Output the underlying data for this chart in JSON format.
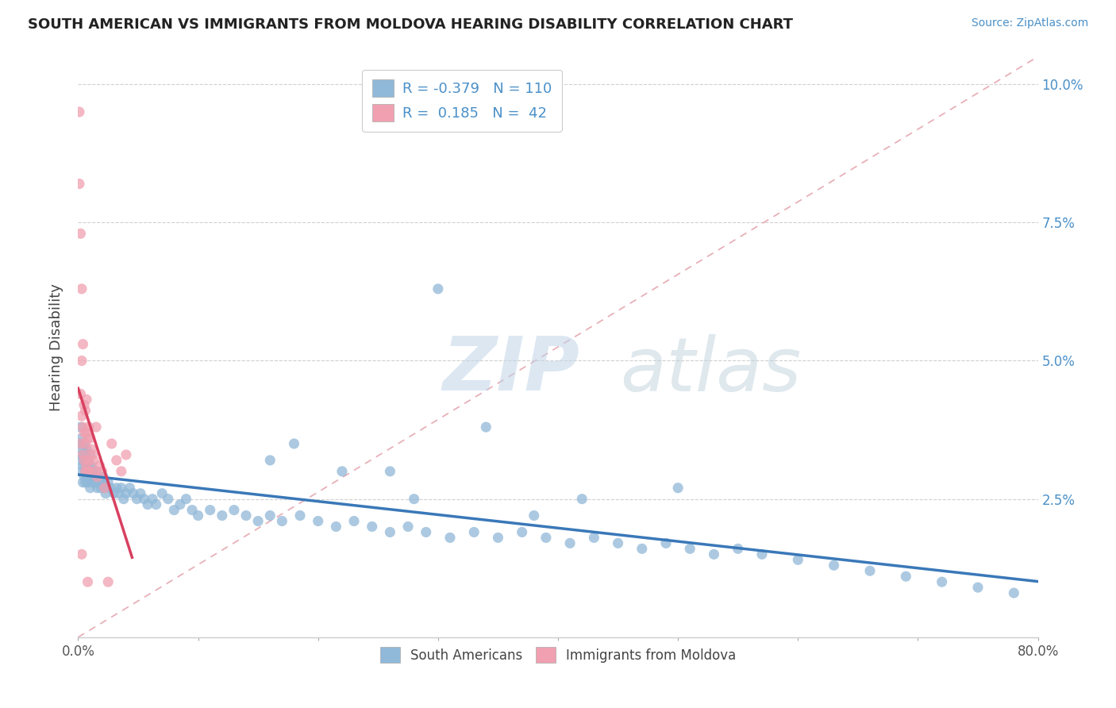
{
  "title": "SOUTH AMERICAN VS IMMIGRANTS FROM MOLDOVA HEARING DISABILITY CORRELATION CHART",
  "source": "Source: ZipAtlas.com",
  "ylabel": "Hearing Disability",
  "watermark_zip": "ZIP",
  "watermark_atlas": "atlas",
  "xlim": [
    0.0,
    0.8
  ],
  "ylim": [
    0.0,
    0.105
  ],
  "ytick_pos": [
    0.0,
    0.025,
    0.05,
    0.075,
    0.1
  ],
  "ytick_labels": [
    "",
    "2.5%",
    "5.0%",
    "7.5%",
    "10.0%"
  ],
  "xtick_pos": [
    0.0,
    0.1,
    0.2,
    0.3,
    0.4,
    0.5,
    0.6,
    0.7,
    0.8
  ],
  "xtick_labels": [
    "0.0%",
    "",
    "",
    "",
    "",
    "",
    "",
    "",
    "80.0%"
  ],
  "blue_R": -0.379,
  "blue_N": 110,
  "pink_R": 0.185,
  "pink_N": 42,
  "blue_color": "#90b8d8",
  "pink_color": "#f0a0b0",
  "blue_line_color": "#3a78b8",
  "pink_line_color": "#d84060",
  "ref_line_color": "#e8b0b8",
  "legend_blue_label": "South Americans",
  "legend_pink_label": "Immigrants from Moldova",
  "blue_x": [
    0.001,
    0.002,
    0.002,
    0.003,
    0.003,
    0.003,
    0.004,
    0.004,
    0.004,
    0.005,
    0.005,
    0.005,
    0.006,
    0.006,
    0.006,
    0.007,
    0.007,
    0.007,
    0.008,
    0.008,
    0.008,
    0.009,
    0.009,
    0.01,
    0.01,
    0.01,
    0.011,
    0.011,
    0.012,
    0.012,
    0.013,
    0.014,
    0.015,
    0.016,
    0.017,
    0.018,
    0.019,
    0.02,
    0.021,
    0.022,
    0.023,
    0.025,
    0.027,
    0.03,
    0.032,
    0.034,
    0.036,
    0.038,
    0.04,
    0.043,
    0.046,
    0.049,
    0.052,
    0.055,
    0.058,
    0.062,
    0.065,
    0.07,
    0.075,
    0.08,
    0.085,
    0.09,
    0.095,
    0.1,
    0.11,
    0.12,
    0.13,
    0.14,
    0.15,
    0.16,
    0.17,
    0.185,
    0.2,
    0.215,
    0.23,
    0.245,
    0.26,
    0.275,
    0.29,
    0.31,
    0.33,
    0.35,
    0.37,
    0.39,
    0.41,
    0.43,
    0.45,
    0.47,
    0.49,
    0.51,
    0.53,
    0.55,
    0.57,
    0.6,
    0.63,
    0.66,
    0.69,
    0.72,
    0.75,
    0.78,
    0.3,
    0.34,
    0.26,
    0.38,
    0.42,
    0.18,
    0.22,
    0.5,
    0.28,
    0.16
  ],
  "blue_y": [
    0.035,
    0.038,
    0.032,
    0.033,
    0.036,
    0.03,
    0.034,
    0.028,
    0.031,
    0.035,
    0.029,
    0.032,
    0.03,
    0.033,
    0.028,
    0.031,
    0.029,
    0.034,
    0.03,
    0.028,
    0.032,
    0.029,
    0.031,
    0.03,
    0.027,
    0.033,
    0.029,
    0.031,
    0.028,
    0.03,
    0.029,
    0.028,
    0.03,
    0.027,
    0.029,
    0.028,
    0.027,
    0.028,
    0.029,
    0.027,
    0.026,
    0.028,
    0.027,
    0.026,
    0.027,
    0.026,
    0.027,
    0.025,
    0.026,
    0.027,
    0.026,
    0.025,
    0.026,
    0.025,
    0.024,
    0.025,
    0.024,
    0.026,
    0.025,
    0.023,
    0.024,
    0.025,
    0.023,
    0.022,
    0.023,
    0.022,
    0.023,
    0.022,
    0.021,
    0.022,
    0.021,
    0.022,
    0.021,
    0.02,
    0.021,
    0.02,
    0.019,
    0.02,
    0.019,
    0.018,
    0.019,
    0.018,
    0.019,
    0.018,
    0.017,
    0.018,
    0.017,
    0.016,
    0.017,
    0.016,
    0.015,
    0.016,
    0.015,
    0.014,
    0.013,
    0.012,
    0.011,
    0.01,
    0.009,
    0.008,
    0.063,
    0.038,
    0.03,
    0.022,
    0.025,
    0.035,
    0.03,
    0.027,
    0.025,
    0.032
  ],
  "pink_x": [
    0.001,
    0.001,
    0.002,
    0.002,
    0.002,
    0.003,
    0.003,
    0.003,
    0.004,
    0.004,
    0.004,
    0.005,
    0.005,
    0.005,
    0.006,
    0.006,
    0.006,
    0.007,
    0.007,
    0.007,
    0.008,
    0.008,
    0.009,
    0.009,
    0.01,
    0.01,
    0.011,
    0.012,
    0.013,
    0.014,
    0.015,
    0.016,
    0.018,
    0.02,
    0.022,
    0.025,
    0.028,
    0.032,
    0.036,
    0.04,
    0.003,
    0.008
  ],
  "pink_y": [
    0.095,
    0.082,
    0.073,
    0.044,
    0.035,
    0.063,
    0.05,
    0.04,
    0.053,
    0.038,
    0.033,
    0.042,
    0.037,
    0.032,
    0.041,
    0.035,
    0.03,
    0.043,
    0.037,
    0.031,
    0.036,
    0.03,
    0.038,
    0.032,
    0.036,
    0.03,
    0.034,
    0.033,
    0.032,
    0.03,
    0.038,
    0.029,
    0.031,
    0.03,
    0.027,
    0.01,
    0.035,
    0.032,
    0.03,
    0.033,
    0.015,
    0.01
  ]
}
